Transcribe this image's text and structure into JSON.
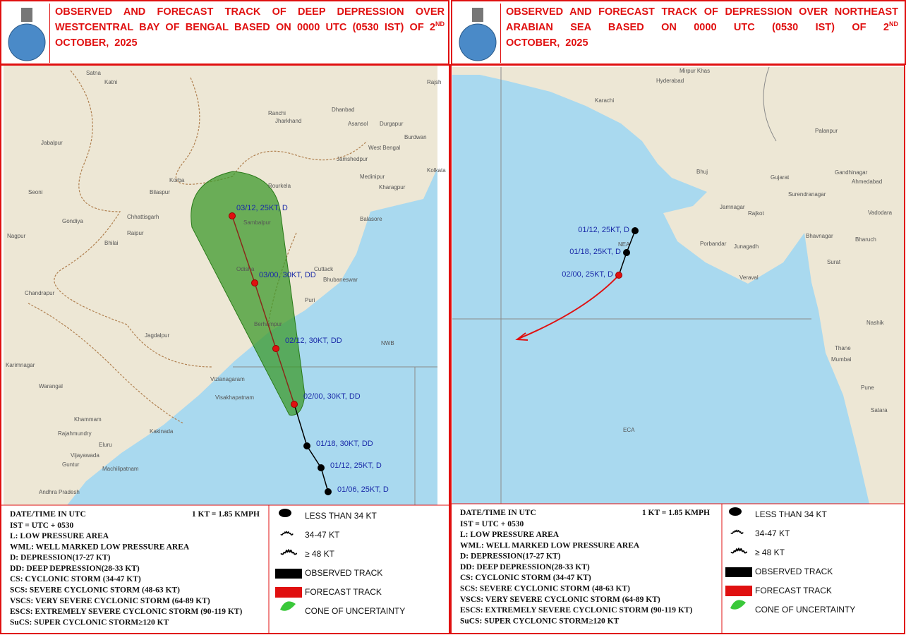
{
  "panels": [
    {
      "title": "OBSERVED AND FORECAST TRACK OF DEEP DEPRESSION OVER WESTCENTRAL BAY OF BENGAL BASED ON 0000 UTC (0530 IST) OF 2",
      "title_sup": "ND",
      "title_end": "OCTOBER, 2025",
      "track": [
        "01/06, 25KT, D",
        "01/12, 25KT, D",
        "01/18, 30KT, DD",
        "02/00, 30KT, DD",
        "02/12, 30KT, DD",
        "03/00, 30KT, DD",
        "03/12, 25KT, D"
      ],
      "places": [
        "Satna",
        "Katni",
        "Jabalpur",
        "Seoni",
        "Nagpur",
        "Gondiya",
        "Bhilai",
        "Raipur",
        "Korba",
        "Bilaspur",
        "Chhattisgarh",
        "Jharkhand",
        "Ranchi",
        "Dhanbad",
        "Asansol",
        "Durgapur",
        "Burdwan",
        "West Bengal",
        "Jamshedpur",
        "Medinipur",
        "Kharagpur",
        "Kolkata",
        "Rourkela",
        "Sambalpur",
        "Odisha",
        "Balasore",
        "Cuttack",
        "Bhubaneswar",
        "Puri",
        "Berhampur",
        "Jagdalpur",
        "Chandrapur",
        "Karimnagar",
        "Warangal",
        "Khammam",
        "Vizianagaram",
        "Visakhapatnam",
        "Rajahmundry",
        "Kakinada",
        "Eluru",
        "Vijayawada",
        "Guntur",
        "Machilipatnam",
        "Andhra Pradesh",
        "NWB",
        "Rajsh"
      ]
    },
    {
      "title": "OBSERVED AND FORECAST TRACK OF DEPRESSION OVER NORTHEAST ARABIAN SEA BASED ON 0000 UTC (0530 IST) OF 2",
      "title_sup": "ND",
      "title_end": "OCTOBER, 2025",
      "track": [
        "01/12, 25KT, D",
        "01/18, 25KT, D",
        "02/00, 25KT, D"
      ],
      "places": [
        "Mirpur Khas",
        "Hyderabad",
        "Karachi",
        "Bhuj",
        "Palanpur",
        "Gandhinagar",
        "Ahmedabad",
        "Gujarat",
        "Surendranagar",
        "Vadodara",
        "Jamnagar",
        "Rajkot",
        "Porbandar",
        "Junagadh",
        "Bhavnagar",
        "Bharuch",
        "Surat",
        "Veraval",
        "Nashik",
        "Thane",
        "Mumbai",
        "Pune",
        "Satara",
        "NEA",
        "ECA"
      ]
    }
  ],
  "legend": {
    "date_time": "DATE/TIME IN UTC",
    "conversion": "1 KT = 1.85 KMPH",
    "ist": "IST = UTC + 0530",
    "abbreviations": [
      "L: LOW PRESSURE AREA",
      "WML: WELL MARKED LOW PRESSURE AREA",
      "D: DEPRESSION(17-27 KT)",
      "DD: DEEP DEPRESSION(28-33 KT)",
      "CS: CYCLONIC STORM (34-47 KT)",
      "SCS: SEVERE CYCLONIC STORM (48-63 KT)",
      "VSCS: VERY SEVERE CYCLONIC STORM (64-89 KT)",
      "ESCS: EXTREMELY SEVERE CYCLONIC STORM (90-119 KT)",
      "SuCS: SUPER CYCLONIC STORM≥120 KT"
    ],
    "symbols": [
      "LESS THAN 34 KT",
      "34-47 KT",
      "≥ 48 KT",
      "OBSERVED TRACK",
      "FORECAST TRACK",
      "CONE OF UNCERTAINTY"
    ]
  }
}
